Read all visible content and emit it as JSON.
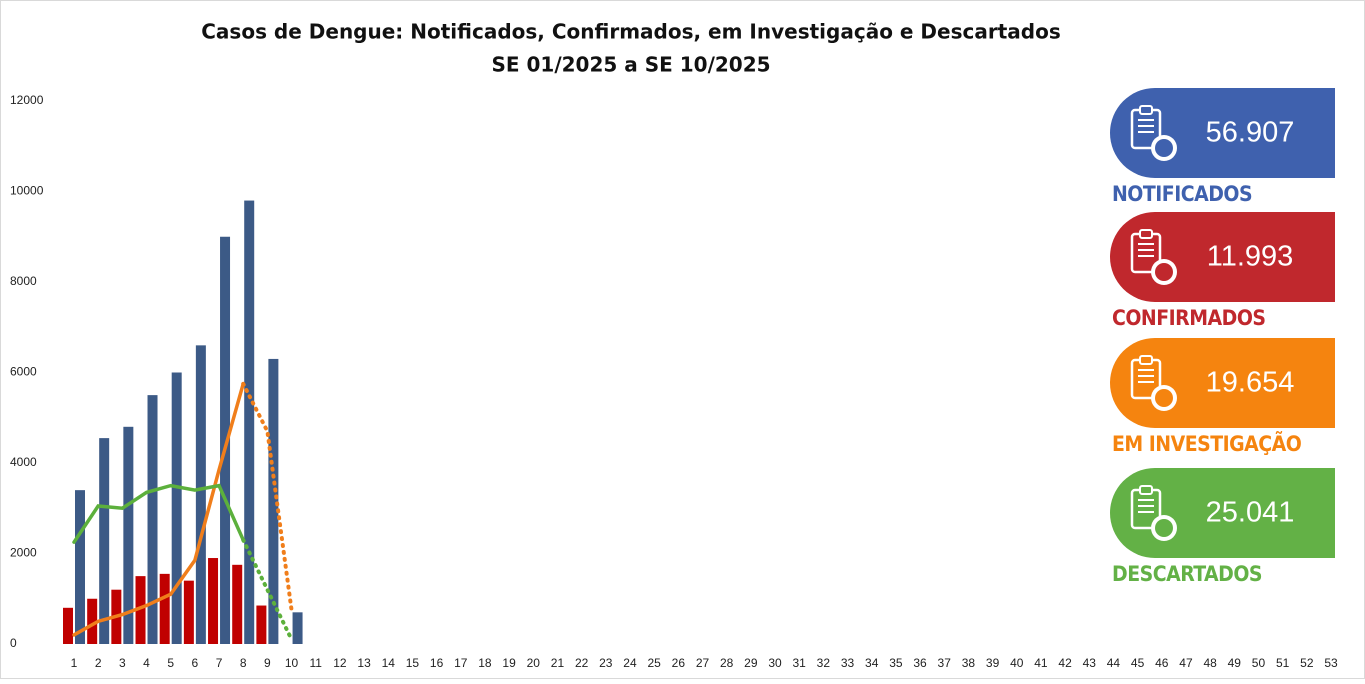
{
  "chart_data": {
    "type": "bar",
    "title": "Casos de Dengue: Notificados, Confirmados, em Investigação e Descartados",
    "subtitle": "SE 01/2025 a SE 10/2025",
    "categories": [
      1,
      2,
      3,
      4,
      5,
      6,
      7,
      8,
      9,
      10,
      11,
      12,
      13,
      14,
      15,
      16,
      17,
      18,
      19,
      20,
      21,
      22,
      23,
      24,
      25,
      26,
      27,
      28,
      29,
      30,
      31,
      32,
      33,
      34,
      35,
      36,
      37,
      38,
      39,
      40,
      41,
      42,
      43,
      44,
      45,
      46,
      47,
      48,
      49,
      50,
      51,
      52,
      53
    ],
    "ylim": [
      0,
      12000
    ],
    "yticks": [
      0,
      2000,
      4000,
      6000,
      8000,
      10000,
      12000
    ],
    "grid": false,
    "series": [
      {
        "name": "NOTIFICADOS",
        "color": "#3c5a86",
        "card_color": "#3f61ae",
        "mark": "bar",
        "total": {
          "value": 56907,
          "label": "56.907"
        },
        "values": [
          3400,
          4550,
          4800,
          5500,
          6000,
          6600,
          9000,
          9800,
          6300,
          700,
          null,
          null,
          null,
          null,
          null,
          null,
          null,
          null,
          null,
          null,
          null,
          null,
          null,
          null,
          null,
          null,
          null,
          null,
          null,
          null,
          null,
          null,
          null,
          null,
          null,
          null,
          null,
          null,
          null,
          null,
          null,
          null,
          null,
          null,
          null,
          null,
          null,
          null,
          null,
          null,
          null,
          null,
          null
        ]
      },
      {
        "name": "CONFIRMADOS",
        "color": "#c00000",
        "card_color": "#c0282d",
        "mark": "bar",
        "total": {
          "value": 11993,
          "label": "11.993"
        },
        "values": [
          800,
          1000,
          1200,
          1500,
          1550,
          1400,
          1900,
          1750,
          850,
          null,
          null,
          null,
          null,
          null,
          null,
          null,
          null,
          null,
          null,
          null,
          null,
          null,
          null,
          null,
          null,
          null,
          null,
          null,
          null,
          null,
          null,
          null,
          null,
          null,
          null,
          null,
          null,
          null,
          null,
          null,
          null,
          null,
          null,
          null,
          null,
          null,
          null,
          null,
          null,
          null,
          null,
          null,
          null
        ]
      },
      {
        "name": "EM INVESTIGAÇÃO",
        "color": "#f07e1b",
        "card_color": "#f5840f",
        "mark": "line",
        "dotted_from": 7,
        "total": {
          "value": 19654,
          "label": "19.654"
        },
        "values": [
          200,
          500,
          650,
          850,
          1100,
          1850,
          3850,
          5750,
          4700,
          750,
          null,
          null,
          null,
          null,
          null,
          null,
          null,
          null,
          null,
          null,
          null,
          null,
          null,
          null,
          null,
          null,
          null,
          null,
          null,
          null,
          null,
          null,
          null,
          null,
          null,
          null,
          null,
          null,
          null,
          null,
          null,
          null,
          null,
          null,
          null,
          null,
          null,
          null,
          null,
          null,
          null,
          null,
          null
        ]
      },
      {
        "name": "DESCARTADOS",
        "color": "#5cb03c",
        "card_color": "#63b146",
        "mark": "line",
        "dotted_from": 7,
        "total": {
          "value": 25041,
          "label": "25.041"
        },
        "values": [
          2250,
          3050,
          3000,
          3350,
          3500,
          3400,
          3500,
          2300,
          1200,
          100,
          null,
          null,
          null,
          null,
          null,
          null,
          null,
          null,
          null,
          null,
          null,
          null,
          null,
          null,
          null,
          null,
          null,
          null,
          null,
          null,
          null,
          null,
          null,
          null,
          null,
          null,
          null,
          null,
          null,
          null,
          null,
          null,
          null,
          null,
          null,
          null,
          null,
          null,
          null,
          null,
          null,
          null,
          null
        ]
      }
    ]
  }
}
